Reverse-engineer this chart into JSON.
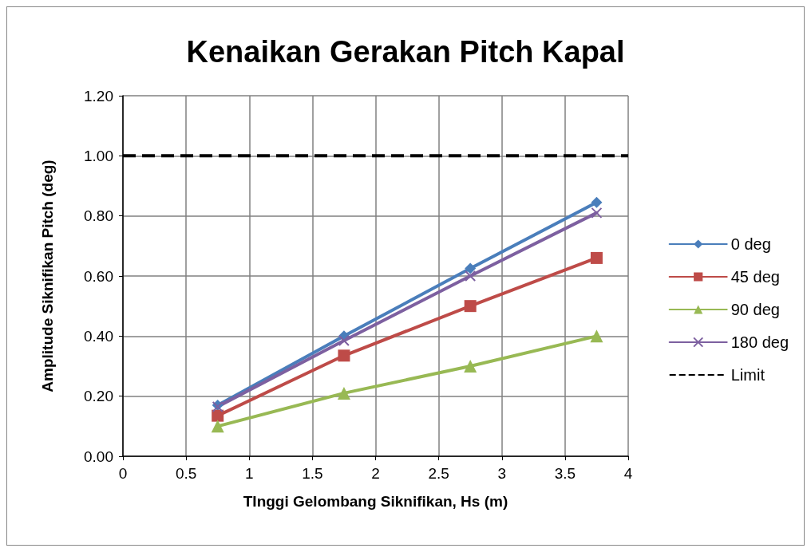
{
  "chart_data": {
    "type": "line",
    "title": "Kenaikan Gerakan Pitch Kapal",
    "xlabel": "TInggi Gelombang Siknifikan, Hs (m)",
    "ylabel": "Amplitude Siknifikan Pitch (deg)",
    "x": [
      0.75,
      1.75,
      2.75,
      3.75
    ],
    "series": [
      {
        "name": "0 deg",
        "color": "#4a7ebb",
        "marker": "diamond",
        "values": [
          0.17,
          0.4,
          0.625,
          0.845
        ]
      },
      {
        "name": "45 deg",
        "color": "#be4b48",
        "marker": "square",
        "values": [
          0.135,
          0.335,
          0.5,
          0.66
        ]
      },
      {
        "name": "90 deg",
        "color": "#98b954",
        "marker": "triangle",
        "values": [
          0.1,
          0.21,
          0.3,
          0.4
        ]
      },
      {
        "name": "180 deg",
        "color": "#7d60a0",
        "marker": "cross",
        "values": [
          0.165,
          0.385,
          0.6,
          0.81
        ]
      },
      {
        "name": "Limit",
        "color": "#000000",
        "marker": "none",
        "line_style": "dashed",
        "x": [
          0,
          4
        ],
        "values": [
          1.0,
          1.0
        ]
      }
    ],
    "xlim": [
      0,
      4
    ],
    "xticks": [
      0,
      0.5,
      1,
      1.5,
      2,
      2.5,
      3,
      3.5,
      4
    ],
    "ylim": [
      0,
      1.2
    ],
    "yticks": [
      {
        "value": 0,
        "label": "0.00"
      },
      {
        "value": 0.2,
        "label": "0.20"
      },
      {
        "value": 0.4,
        "label": "0.40"
      },
      {
        "value": 0.6,
        "label": "0.60"
      },
      {
        "value": 0.8,
        "label": "0.80"
      },
      {
        "value": 1.0,
        "label": "1.00"
      },
      {
        "value": 1.2,
        "label": "1.20"
      }
    ],
    "grid": true,
    "legend": "right",
    "line_style": "solid"
  }
}
